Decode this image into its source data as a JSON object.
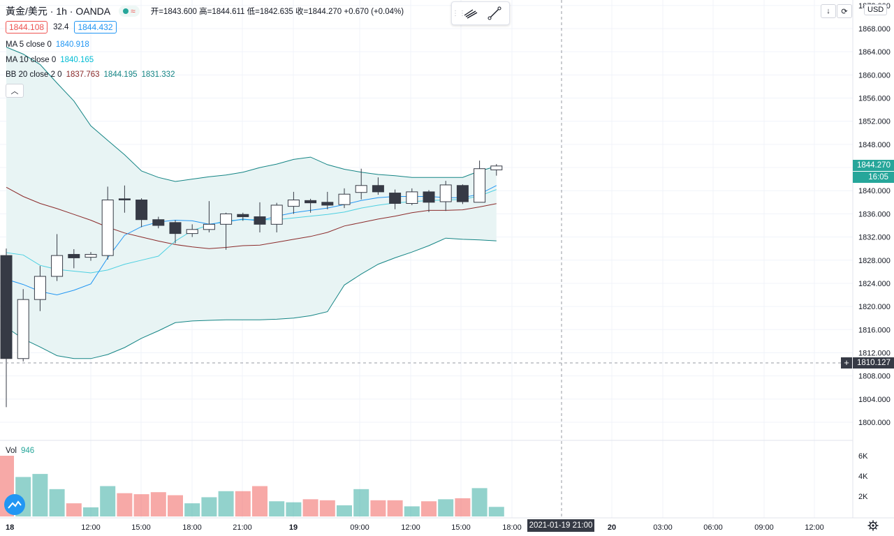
{
  "header": {
    "symbol": "黃金/美元 · 1h · OANDA",
    "ohlc": "开=1843.600 高=1844.611 低=1842.635 收=1844.270 +0.670 (+0.04%)",
    "bid": "1844.108",
    "spread": "32.4",
    "ask": "1844.432"
  },
  "indicators": {
    "ma5": {
      "label": "MA 5 close 0",
      "value": "1840.918",
      "color": "#2196f3"
    },
    "ma10": {
      "label": "MA 10 close 0",
      "value": "1840.165",
      "color": "#4dd0e1"
    },
    "bb": {
      "label": "BB 20 close 2 0",
      "basis": "1837.763",
      "upper": "1844.195",
      "lower": "1831.332",
      "basis_color": "#8b2a2a",
      "band_color": "#138484"
    }
  },
  "volume": {
    "label": "Vol",
    "value": "946"
  },
  "currency": "USD",
  "price_labels": {
    "last": "1844.270",
    "countdown": "16:05",
    "crosshair": "1810.127"
  },
  "crosshair_time": "2021-01-19   21:00",
  "colors": {
    "up": "#26a69a",
    "down": "#ef5350",
    "candle_down": "#363a45",
    "bb_fill": "#e8f4f4"
  },
  "chart_data": {
    "type": "candlestick",
    "y_ticks": [
      "1800.000",
      "1804.000",
      "1808.000",
      "1812.000",
      "1816.000",
      "1820.000",
      "1824.000",
      "1828.000",
      "1832.000",
      "1836.000",
      "1840.000",
      "1844.000",
      "1848.000",
      "1852.000",
      "1856.000",
      "1860.000",
      "1864.000",
      "1868.000",
      "1872.000"
    ],
    "volume_ticks": [
      "2K",
      "4K",
      "6K"
    ],
    "x_ticks": [
      "18",
      "12:00",
      "15:00",
      "18:00",
      "21:00",
      "19",
      "09:00",
      "12:00",
      "15:00",
      "18:00",
      "20",
      "03:00",
      "06:00",
      "09:00",
      "12:00"
    ],
    "ylim": [
      1797,
      1873
    ],
    "candles": [
      {
        "o": 1828.8,
        "h": 1830.0,
        "l": 1802.6,
        "c": 1811.0,
        "v": 6000
      },
      {
        "o": 1811.0,
        "h": 1823.0,
        "l": 1810.5,
        "c": 1821.2,
        "v": 3900
      },
      {
        "o": 1821.2,
        "h": 1827.0,
        "l": 1819.2,
        "c": 1825.2,
        "v": 4200
      },
      {
        "o": 1825.2,
        "h": 1832.5,
        "l": 1824.4,
        "c": 1828.8,
        "v": 2700
      },
      {
        "o": 1829.0,
        "h": 1829.9,
        "l": 1826.6,
        "c": 1828.4,
        "v": 1300
      },
      {
        "o": 1828.5,
        "h": 1829.4,
        "l": 1827.9,
        "c": 1829.0,
        "v": 900
      },
      {
        "o": 1828.8,
        "h": 1840.7,
        "l": 1828.1,
        "c": 1838.4,
        "v": 3000
      },
      {
        "o": 1838.6,
        "h": 1840.9,
        "l": 1836.2,
        "c": 1838.4,
        "v": 2300
      },
      {
        "o": 1838.4,
        "h": 1838.7,
        "l": 1833.7,
        "c": 1835.0,
        "v": 2200
      },
      {
        "o": 1835.0,
        "h": 1835.5,
        "l": 1833.5,
        "c": 1834.0,
        "v": 2400
      },
      {
        "o": 1834.5,
        "h": 1834.9,
        "l": 1830.9,
        "c": 1832.6,
        "v": 2100
      },
      {
        "o": 1832.6,
        "h": 1834.2,
        "l": 1832.0,
        "c": 1833.3,
        "v": 1300
      },
      {
        "o": 1833.3,
        "h": 1838.2,
        "l": 1832.8,
        "c": 1834.2,
        "v": 1900
      },
      {
        "o": 1834.2,
        "h": 1836.2,
        "l": 1829.8,
        "c": 1836.0,
        "v": 2500
      },
      {
        "o": 1835.9,
        "h": 1836.2,
        "l": 1834.8,
        "c": 1835.5,
        "v": 2500
      },
      {
        "o": 1835.5,
        "h": 1838.0,
        "l": 1832.8,
        "c": 1834.2,
        "v": 3000
      },
      {
        "o": 1834.2,
        "h": 1837.9,
        "l": 1832.8,
        "c": 1837.5,
        "v": 1500
      },
      {
        "o": 1837.3,
        "h": 1839.8,
        "l": 1836.0,
        "c": 1838.4,
        "v": 1400
      },
      {
        "o": 1838.3,
        "h": 1838.6,
        "l": 1836.2,
        "c": 1837.9,
        "v": 1700
      },
      {
        "o": 1838.0,
        "h": 1839.8,
        "l": 1836.8,
        "c": 1837.5,
        "v": 1600
      },
      {
        "o": 1837.6,
        "h": 1840.4,
        "l": 1837.0,
        "c": 1839.4,
        "v": 1100
      },
      {
        "o": 1839.7,
        "h": 1843.8,
        "l": 1838.5,
        "c": 1840.9,
        "v": 2700
      },
      {
        "o": 1840.9,
        "h": 1842.3,
        "l": 1839.3,
        "c": 1839.8,
        "v": 1600
      },
      {
        "o": 1839.6,
        "h": 1840.2,
        "l": 1836.8,
        "c": 1837.8,
        "v": 1600
      },
      {
        "o": 1837.8,
        "h": 1840.4,
        "l": 1837.5,
        "c": 1839.8,
        "v": 1000
      },
      {
        "o": 1839.8,
        "h": 1840.1,
        "l": 1836.3,
        "c": 1838.0,
        "v": 1500
      },
      {
        "o": 1838.1,
        "h": 1841.7,
        "l": 1836.5,
        "c": 1841.0,
        "v": 1700
      },
      {
        "o": 1840.9,
        "h": 1841.1,
        "l": 1837.7,
        "c": 1838.1,
        "v": 1800
      },
      {
        "o": 1838.0,
        "h": 1845.2,
        "l": 1838.0,
        "c": 1843.8,
        "v": 2800
      },
      {
        "o": 1843.6,
        "h": 1844.6,
        "l": 1842.6,
        "c": 1844.27,
        "v": 946
      }
    ],
    "ma5": [
      1824.7,
      1823.8,
      1822.6,
      1822.0,
      1822.8,
      1823.9,
      1828.4,
      1832.3,
      1833.8,
      1834.6,
      1834.9,
      1834.8,
      1834.2,
      1834.6,
      1835.1,
      1834.8,
      1835.6,
      1836.2,
      1836.6,
      1837.0,
      1837.6,
      1838.3,
      1838.8,
      1839.0,
      1839.0,
      1839.0,
      1838.8,
      1838.8,
      1839.4,
      1840.9
    ],
    "ma10": [
      1829.3,
      1828.9,
      1827.1,
      1826.4,
      1826.1,
      1825.8,
      1826.3,
      1827.3,
      1828.0,
      1828.7,
      1831.3,
      1833.1,
      1834.1,
      1834.8,
      1835.0,
      1835.0,
      1835.0,
      1835.3,
      1835.6,
      1835.9,
      1836.3,
      1837.0,
      1837.5,
      1837.9,
      1838.1,
      1838.3,
      1838.4,
      1838.5,
      1839.1,
      1840.2
    ],
    "bb_basis": [
      1840.6,
      1839.0,
      1837.8,
      1836.9,
      1835.9,
      1834.9,
      1833.7,
      1832.7,
      1832.0,
      1831.3,
      1830.7,
      1830.3,
      1830.0,
      1830.2,
      1830.5,
      1830.6,
      1831.1,
      1831.6,
      1832.1,
      1832.8,
      1833.9,
      1834.5,
      1835.1,
      1835.6,
      1836.2,
      1836.6,
      1836.6,
      1836.7,
      1837.2,
      1837.763
    ],
    "bb_upper": [
      1864.8,
      1863.6,
      1861.8,
      1858.6,
      1855.5,
      1851.2,
      1848.7,
      1846.2,
      1843.4,
      1842.3,
      1841.6,
      1842.0,
      1842.4,
      1842.7,
      1843.2,
      1844.0,
      1844.6,
      1845.4,
      1845.8,
      1844.5,
      1843.7,
      1843.2,
      1842.8,
      1842.6,
      1842.3,
      1842.3,
      1842.3,
      1842.3,
      1843.4,
      1844.195
    ],
    "bb_lower": [
      1816.4,
      1814.4,
      1813.0,
      1811.5,
      1811.0,
      1811.0,
      1811.7,
      1812.9,
      1814.5,
      1815.8,
      1817.2,
      1817.5,
      1817.6,
      1817.7,
      1817.7,
      1817.7,
      1817.8,
      1818.0,
      1818.4,
      1819.1,
      1823.7,
      1825.6,
      1827.3,
      1828.4,
      1829.4,
      1830.5,
      1831.8,
      1831.6,
      1831.5,
      1831.332
    ]
  }
}
